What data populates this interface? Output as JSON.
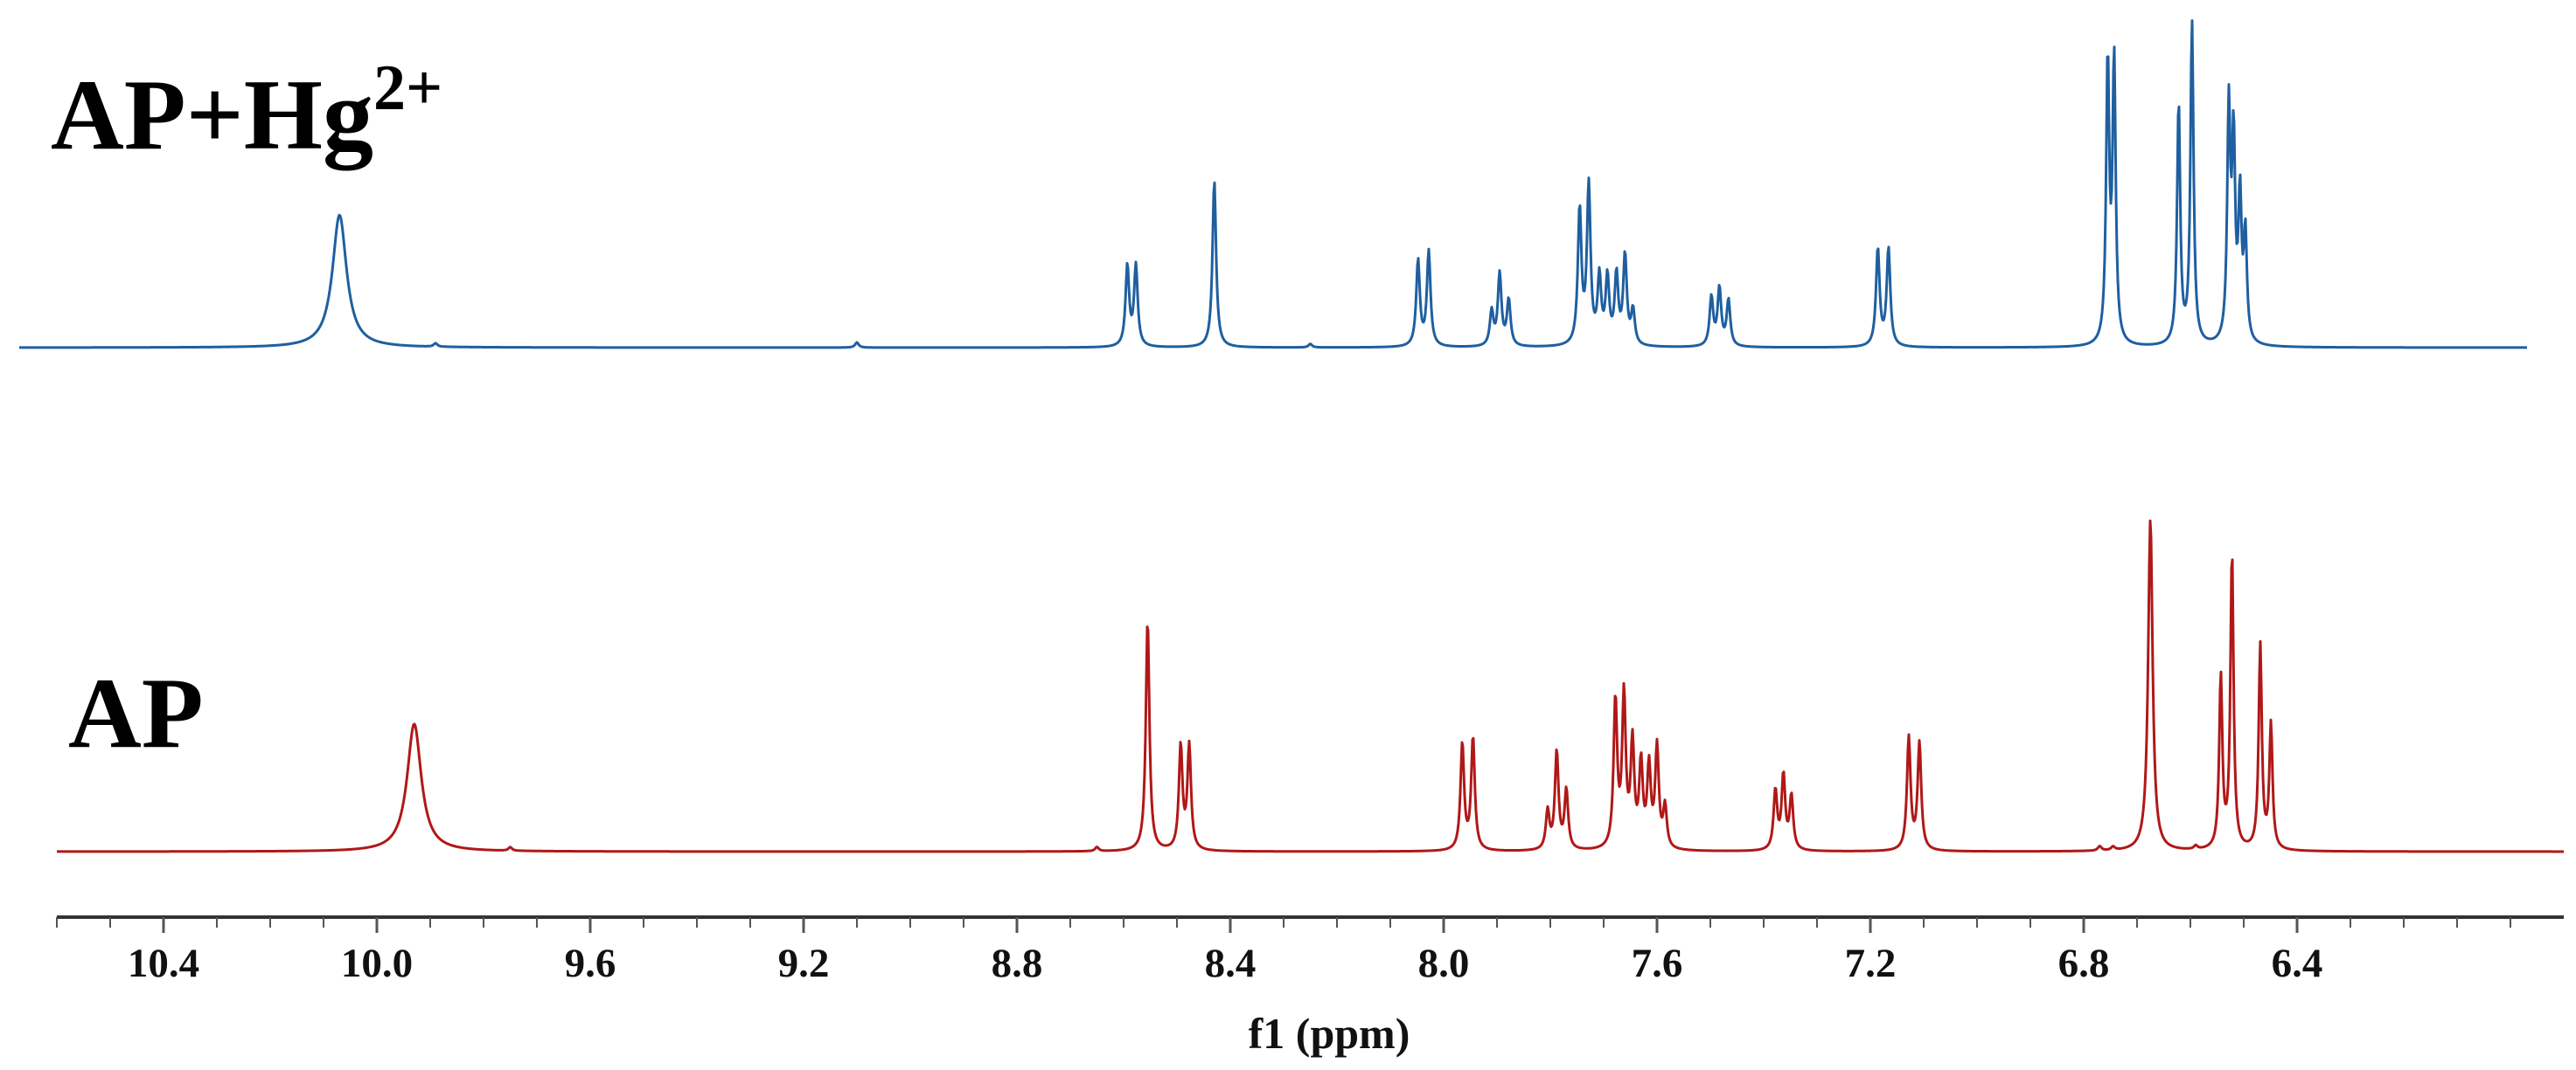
{
  "chart_data": {
    "type": "line",
    "title": "",
    "xlabel": "f1 (ppm)",
    "ylabel": "",
    "x_reversed": true,
    "xlim": [
      10.6,
      5.9
    ],
    "x_ticks": [
      10.4,
      10.0,
      9.6,
      9.2,
      8.8,
      8.4,
      8.0,
      7.6,
      7.2,
      6.8,
      6.4
    ],
    "x_tick_labels": [
      "10.4",
      "10.0",
      "9.6",
      "9.2",
      "8.8",
      "8.4",
      "8.0",
      "7.6",
      "7.2",
      "6.8",
      "6.4"
    ],
    "grid": false,
    "legend": "none",
    "series": [
      {
        "name": "AP+Hg",
        "name_superscript": "2+",
        "color": "#1f5fa0",
        "range": [
          10.5,
          5.92
        ],
        "peaks": [
          {
            "ppm": 10.07,
            "height": 0.46,
            "width": 0.016
          },
          {
            "ppm": 9.89,
            "height": 0.012,
            "width": 0.004
          },
          {
            "ppm": 9.1,
            "height": 0.018,
            "width": 0.004
          },
          {
            "ppm": 8.593,
            "height": 0.28,
            "width": 0.004
          },
          {
            "ppm": 8.577,
            "height": 0.28,
            "width": 0.004
          },
          {
            "ppm": 8.43,
            "height": 0.58,
            "width": 0.004
          },
          {
            "ppm": 8.25,
            "height": 0.012,
            "width": 0.004
          },
          {
            "ppm": 8.048,
            "height": 0.3,
            "width": 0.004
          },
          {
            "ppm": 8.028,
            "height": 0.33,
            "width": 0.004
          },
          {
            "ppm": 7.91,
            "height": 0.12,
            "width": 0.004
          },
          {
            "ppm": 7.895,
            "height": 0.25,
            "width": 0.004
          },
          {
            "ppm": 7.878,
            "height": 0.16,
            "width": 0.004
          },
          {
            "ppm": 7.745,
            "height": 0.47,
            "width": 0.004
          },
          {
            "ppm": 7.728,
            "height": 0.55,
            "width": 0.004
          },
          {
            "ppm": 7.708,
            "height": 0.23,
            "width": 0.004
          },
          {
            "ppm": 7.693,
            "height": 0.23,
            "width": 0.004
          },
          {
            "ppm": 7.676,
            "height": 0.24,
            "width": 0.004
          },
          {
            "ppm": 7.66,
            "height": 0.31,
            "width": 0.004
          },
          {
            "ppm": 7.645,
            "height": 0.12,
            "width": 0.004
          },
          {
            "ppm": 7.498,
            "height": 0.17,
            "width": 0.004
          },
          {
            "ppm": 7.483,
            "height": 0.2,
            "width": 0.004
          },
          {
            "ppm": 7.466,
            "height": 0.16,
            "width": 0.004
          },
          {
            "ppm": 7.186,
            "height": 0.34,
            "width": 0.004
          },
          {
            "ppm": 7.166,
            "height": 0.34,
            "width": 0.004
          },
          {
            "ppm": 6.755,
            "height": 0.98,
            "width": 0.0035
          },
          {
            "ppm": 6.743,
            "height": 0.98,
            "width": 0.0035
          },
          {
            "ppm": 6.622,
            "height": 0.84,
            "width": 0.0035
          },
          {
            "ppm": 6.597,
            "height": 1.12,
            "width": 0.0035
          },
          {
            "ppm": 6.528,
            "height": 0.8,
            "width": 0.0035
          },
          {
            "ppm": 6.519,
            "height": 0.68,
            "width": 0.0035
          },
          {
            "ppm": 6.507,
            "height": 0.49,
            "width": 0.0035
          },
          {
            "ppm": 6.497,
            "height": 0.37,
            "width": 0.0035
          }
        ]
      },
      {
        "name": "AP",
        "color": "#b01818",
        "range": [
          10.6,
          5.9
        ],
        "peaks": [
          {
            "ppm": 9.93,
            "height": 0.43,
            "width": 0.016
          },
          {
            "ppm": 9.75,
            "height": 0.012,
            "width": 0.004
          },
          {
            "ppm": 8.65,
            "height": 0.014,
            "width": 0.004
          },
          {
            "ppm": 8.555,
            "height": 0.78,
            "width": 0.004
          },
          {
            "ppm": 8.493,
            "height": 0.35,
            "width": 0.004
          },
          {
            "ppm": 8.477,
            "height": 0.35,
            "width": 0.004
          },
          {
            "ppm": 7.965,
            "height": 0.36,
            "width": 0.004
          },
          {
            "ppm": 7.945,
            "height": 0.38,
            "width": 0.004
          },
          {
            "ppm": 7.805,
            "height": 0.13,
            "width": 0.004
          },
          {
            "ppm": 7.788,
            "height": 0.33,
            "width": 0.004
          },
          {
            "ppm": 7.77,
            "height": 0.2,
            "width": 0.004
          },
          {
            "ppm": 7.678,
            "height": 0.5,
            "width": 0.004
          },
          {
            "ppm": 7.662,
            "height": 0.51,
            "width": 0.004
          },
          {
            "ppm": 7.646,
            "height": 0.35,
            "width": 0.004
          },
          {
            "ppm": 7.63,
            "height": 0.28,
            "width": 0.004
          },
          {
            "ppm": 7.615,
            "height": 0.27,
            "width": 0.004
          },
          {
            "ppm": 7.6,
            "height": 0.34,
            "width": 0.004
          },
          {
            "ppm": 7.585,
            "height": 0.14,
            "width": 0.004
          },
          {
            "ppm": 7.378,
            "height": 0.2,
            "width": 0.004
          },
          {
            "ppm": 7.363,
            "height": 0.25,
            "width": 0.004
          },
          {
            "ppm": 7.348,
            "height": 0.18,
            "width": 0.004
          },
          {
            "ppm": 7.128,
            "height": 0.38,
            "width": 0.004
          },
          {
            "ppm": 7.108,
            "height": 0.36,
            "width": 0.004
          },
          {
            "ppm": 6.77,
            "height": 0.015,
            "width": 0.004
          },
          {
            "ppm": 6.745,
            "height": 0.012,
            "width": 0.004
          },
          {
            "ppm": 6.675,
            "height": 1.12,
            "width": 0.005
          },
          {
            "ppm": 6.59,
            "height": 0.012,
            "width": 0.004
          },
          {
            "ppm": 6.543,
            "height": 0.58,
            "width": 0.0035
          },
          {
            "ppm": 6.522,
            "height": 1.0,
            "width": 0.0035
          },
          {
            "ppm": 6.469,
            "height": 0.69,
            "width": 0.0035
          },
          {
            "ppm": 6.449,
            "height": 0.42,
            "width": 0.0035
          }
        ]
      }
    ]
  }
}
